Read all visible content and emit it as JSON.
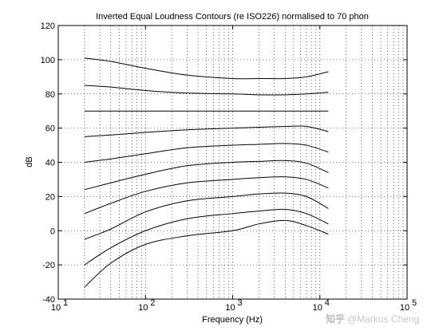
{
  "chart_data": {
    "type": "line",
    "title": "Inverted Equal Loudness Contours (re ISO226) normalised to 70 phon",
    "xlabel": "Frequency (Hz)",
    "ylabel": "dB",
    "xscale": "log",
    "xlim": [
      10,
      100000
    ],
    "ylim": [
      -40,
      120
    ],
    "x_tick_labels": [
      {
        "base": "10",
        "exp": "1"
      },
      {
        "base": "10",
        "exp": "2"
      },
      {
        "base": "10",
        "exp": "3"
      },
      {
        "base": "10",
        "exp": "4"
      },
      {
        "base": "10",
        "exp": "5"
      }
    ],
    "x_ticks": [
      10,
      100,
      1000,
      10000,
      100000
    ],
    "y_ticks": [
      -40,
      -20,
      0,
      20,
      40,
      60,
      80,
      100,
      120
    ],
    "y_tick_labels": [
      "-40",
      "-20",
      "0",
      "20",
      "40",
      "60",
      "80",
      "100",
      "120"
    ],
    "grid": {
      "x": "minor dotted",
      "y": "major dotted"
    },
    "line_color": "#000000",
    "x": [
      20,
      40,
      100,
      300,
      1000,
      2000,
      4000,
      7000,
      12500
    ],
    "series": [
      {
        "values": [
          101,
          99,
          95,
          91,
          89,
          89,
          89,
          90,
          93
        ]
      },
      {
        "values": [
          85,
          84,
          82,
          80.5,
          80,
          79.5,
          79.5,
          80,
          81
        ]
      },
      {
        "values": [
          70,
          70,
          70,
          70,
          70,
          70,
          70,
          70,
          70
        ]
      },
      {
        "values": [
          55,
          56,
          57.5,
          59,
          60,
          60.5,
          61,
          61,
          58
        ]
      },
      {
        "values": [
          40,
          42,
          45,
          48.5,
          50,
          50.5,
          51,
          50,
          46
        ]
      },
      {
        "values": [
          24,
          28,
          33,
          38,
          40,
          40.5,
          41,
          39.5,
          34
        ]
      },
      {
        "values": [
          10,
          16,
          23,
          28,
          30,
          31,
          31.5,
          30,
          25
        ]
      },
      {
        "values": [
          -5,
          1,
          11,
          17.5,
          20,
          21.5,
          22,
          20,
          13
        ]
      },
      {
        "values": [
          -20,
          -10,
          0,
          7,
          10,
          11.5,
          12.5,
          10,
          4
        ]
      },
      {
        "values": [
          -33,
          -19,
          -8,
          -3,
          0,
          4,
          6,
          3,
          -2
        ]
      }
    ]
  },
  "watermark": {
    "logo_text": "知乎",
    "text": "@Markus Cheng"
  }
}
